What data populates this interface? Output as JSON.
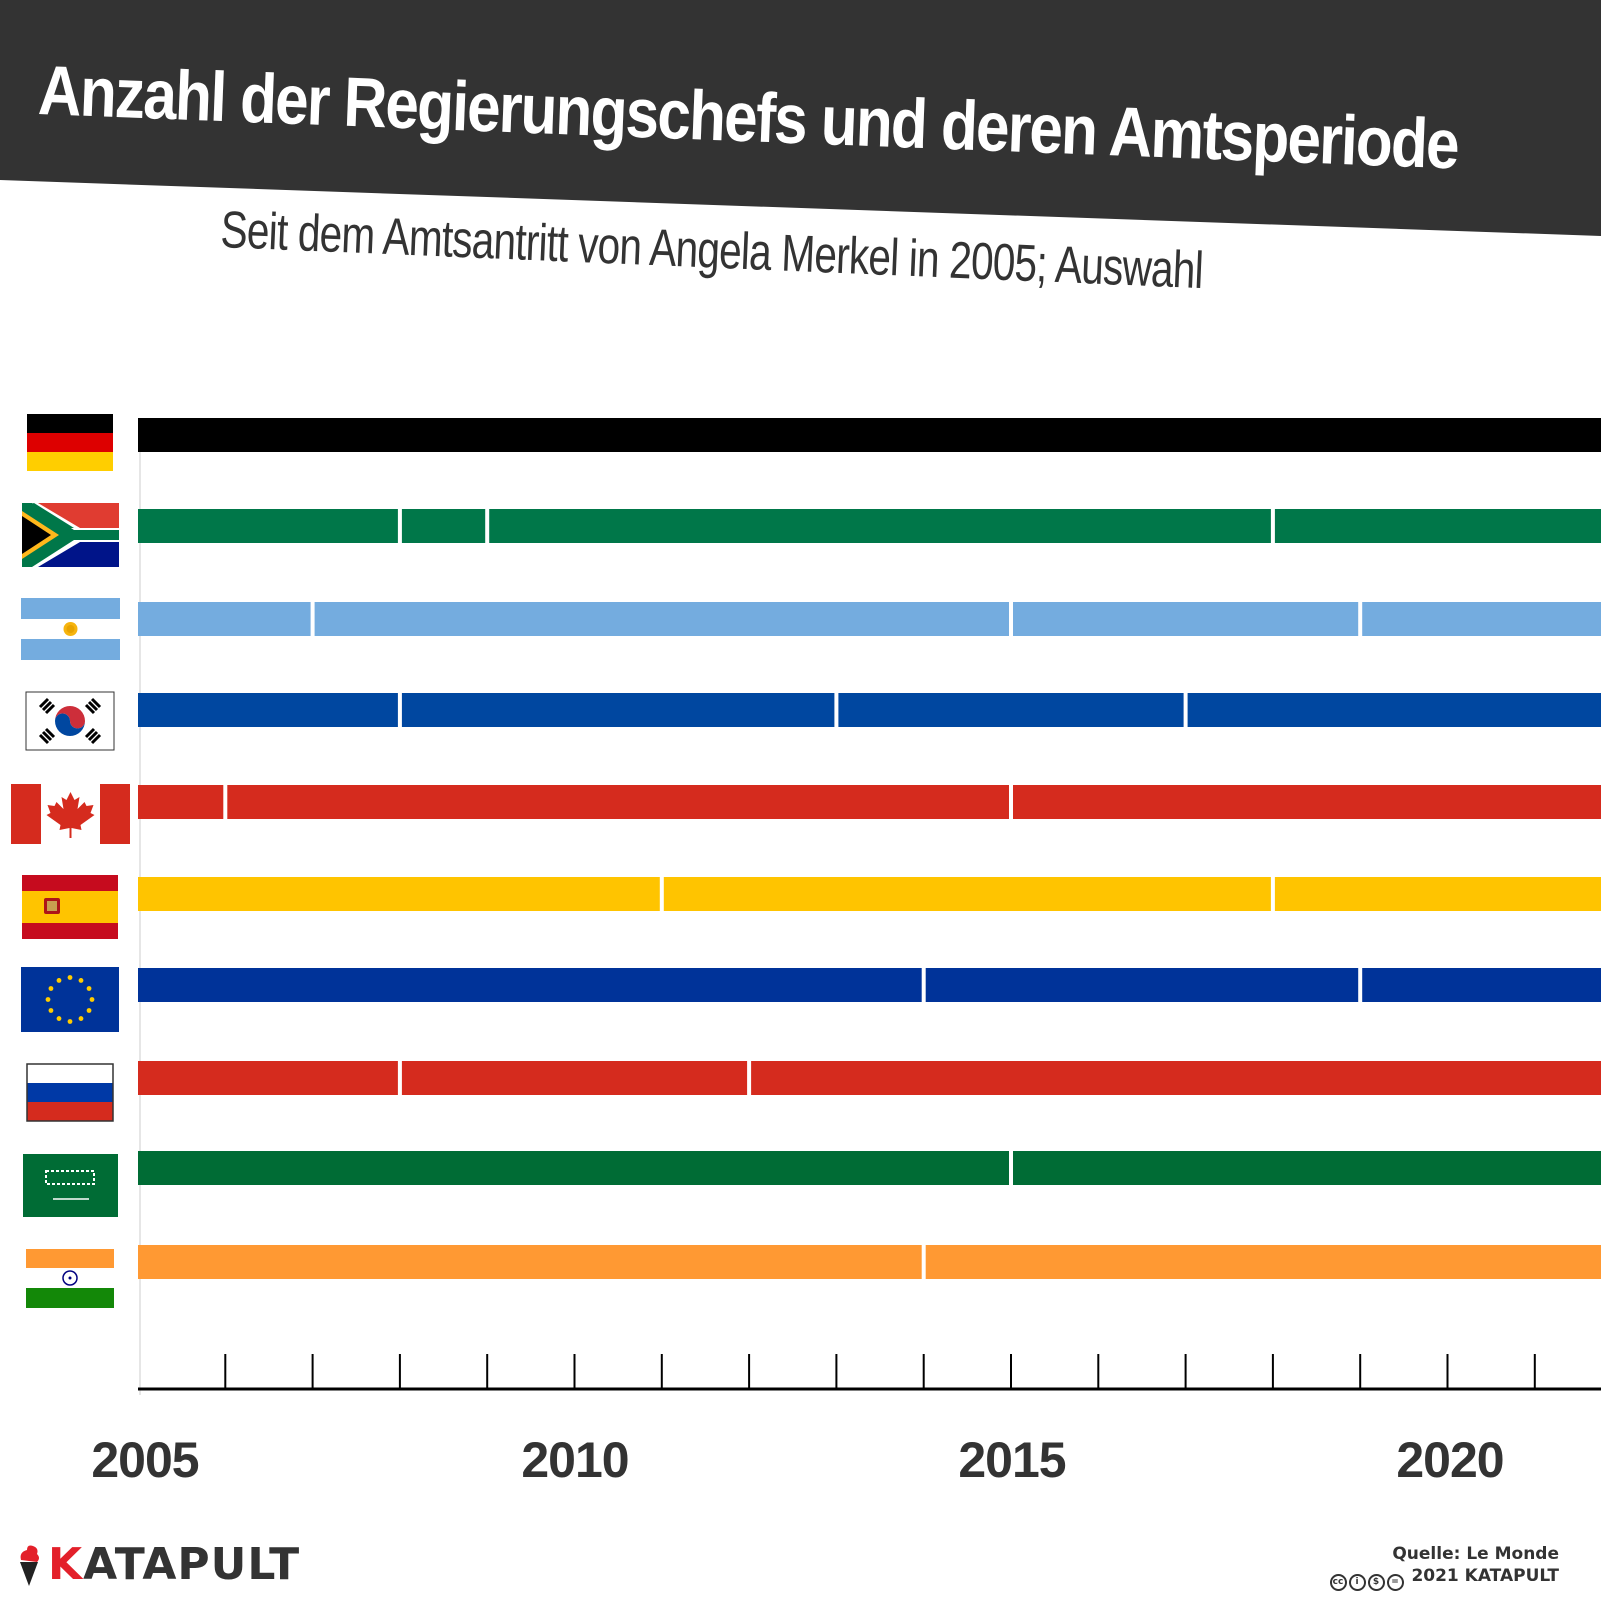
{
  "header": {
    "title": "Anzahl der Regierungschefs und deren Amtsperiode",
    "subtitle": "Seit dem Amtsantritt von Angela Merkel in 2005; Auswahl",
    "banner_color": "#333333"
  },
  "chart_data": {
    "type": "timeline",
    "title": "Anzahl der Regierungschefs und deren Amtsperiode",
    "subtitle": "Seit dem Amtsantritt von Angela Merkel in 2005; Auswahl",
    "xlabel": "",
    "xlim": [
      2005,
      2021.7
    ],
    "x_ticks": [
      2005,
      2006,
      2007,
      2008,
      2009,
      2010,
      2011,
      2012,
      2013,
      2014,
      2015,
      2016,
      2017,
      2018,
      2019,
      2020,
      2021
    ],
    "x_tick_labels": [
      "2005",
      "2010",
      "2015",
      "2020"
    ],
    "grid": false,
    "series": [
      {
        "name": "germany",
        "flag_icon": "germany-flag-icon",
        "color": "#000000",
        "changes": []
      },
      {
        "name": "south-africa",
        "flag_icon": "south-africa-flag-icon",
        "color": "#007749",
        "changes": [
          2008,
          2009,
          2018
        ]
      },
      {
        "name": "argentina",
        "flag_icon": "argentina-flag-icon",
        "color": "#74acdf",
        "changes": [
          2007,
          2015,
          2019
        ]
      },
      {
        "name": "south-korea",
        "flag_icon": "south-korea-flag-icon",
        "color": "#0047a0",
        "changes": [
          2008,
          2013,
          2017
        ]
      },
      {
        "name": "canada",
        "flag_icon": "canada-flag-icon",
        "color": "#d52b1e",
        "changes": [
          2006,
          2015
        ]
      },
      {
        "name": "spain",
        "flag_icon": "spain-flag-icon",
        "color": "#ffc400",
        "changes": [
          2011,
          2018
        ]
      },
      {
        "name": "eu",
        "flag_icon": "eu-flag-icon",
        "color": "#003399",
        "changes": [
          2014,
          2019
        ]
      },
      {
        "name": "russia",
        "flag_icon": "russia-flag-icon",
        "color": "#d52b1e",
        "changes": [
          2008,
          2012
        ]
      },
      {
        "name": "saudi-arabia",
        "flag_icon": "saudi-arabia-flag-icon",
        "color": "#006c35",
        "changes": [
          2015
        ]
      },
      {
        "name": "india",
        "flag_icon": "india-flag-icon",
        "color": "#ff9933",
        "changes": [
          2014
        ]
      }
    ]
  },
  "footer": {
    "logo_k": "K",
    "logo_rest": "ATAPULT",
    "source": "Quelle: Le Monde",
    "copyright": "2021 KATAPULT",
    "cc_icons": [
      "cc-icon",
      "by-icon",
      "nc-icon",
      "nd-icon"
    ],
    "logo_color": "#e3202a"
  }
}
